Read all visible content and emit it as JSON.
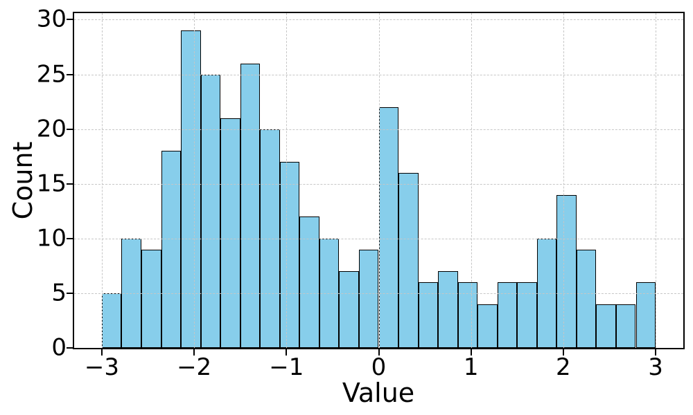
{
  "chart_data": {
    "type": "bar",
    "subtype": "histogram",
    "title": "",
    "xlabel": "Value",
    "ylabel": "Count",
    "bins": {
      "start": -3,
      "end": 3,
      "count": 28,
      "width": 0.2142857
    },
    "counts": [
      5,
      10,
      9,
      18,
      29,
      25,
      21,
      26,
      20,
      17,
      12,
      10,
      7,
      9,
      22,
      16,
      6,
      7,
      6,
      4,
      6,
      6,
      10,
      14,
      9,
      4,
      4,
      6
    ],
    "x_ticks": [
      {
        "value": -3,
        "label": "−3"
      },
      {
        "value": -2,
        "label": "−2"
      },
      {
        "value": -1,
        "label": "−1"
      },
      {
        "value": 0,
        "label": "0"
      },
      {
        "value": 1,
        "label": "1"
      },
      {
        "value": 2,
        "label": "2"
      },
      {
        "value": 3,
        "label": "3"
      }
    ],
    "y_ticks": [
      {
        "value": 0,
        "label": "0"
      },
      {
        "value": 5,
        "label": "5"
      },
      {
        "value": 10,
        "label": "10"
      },
      {
        "value": 15,
        "label": "15"
      },
      {
        "value": 20,
        "label": "20"
      },
      {
        "value": 25,
        "label": "25"
      },
      {
        "value": 30,
        "label": "30"
      }
    ],
    "xlim": [
      -3.3,
      3.3
    ],
    "ylim": [
      0,
      30.6
    ],
    "grid": true,
    "legend": null,
    "styles": {
      "bar_color": "#87CEEB",
      "bar_edge_color": "#000000",
      "grid_color": "#c6c6c6",
      "grid_style": "dashed",
      "axis_color": "#000000",
      "text_color": "#000000",
      "background": "#ffffff"
    }
  }
}
